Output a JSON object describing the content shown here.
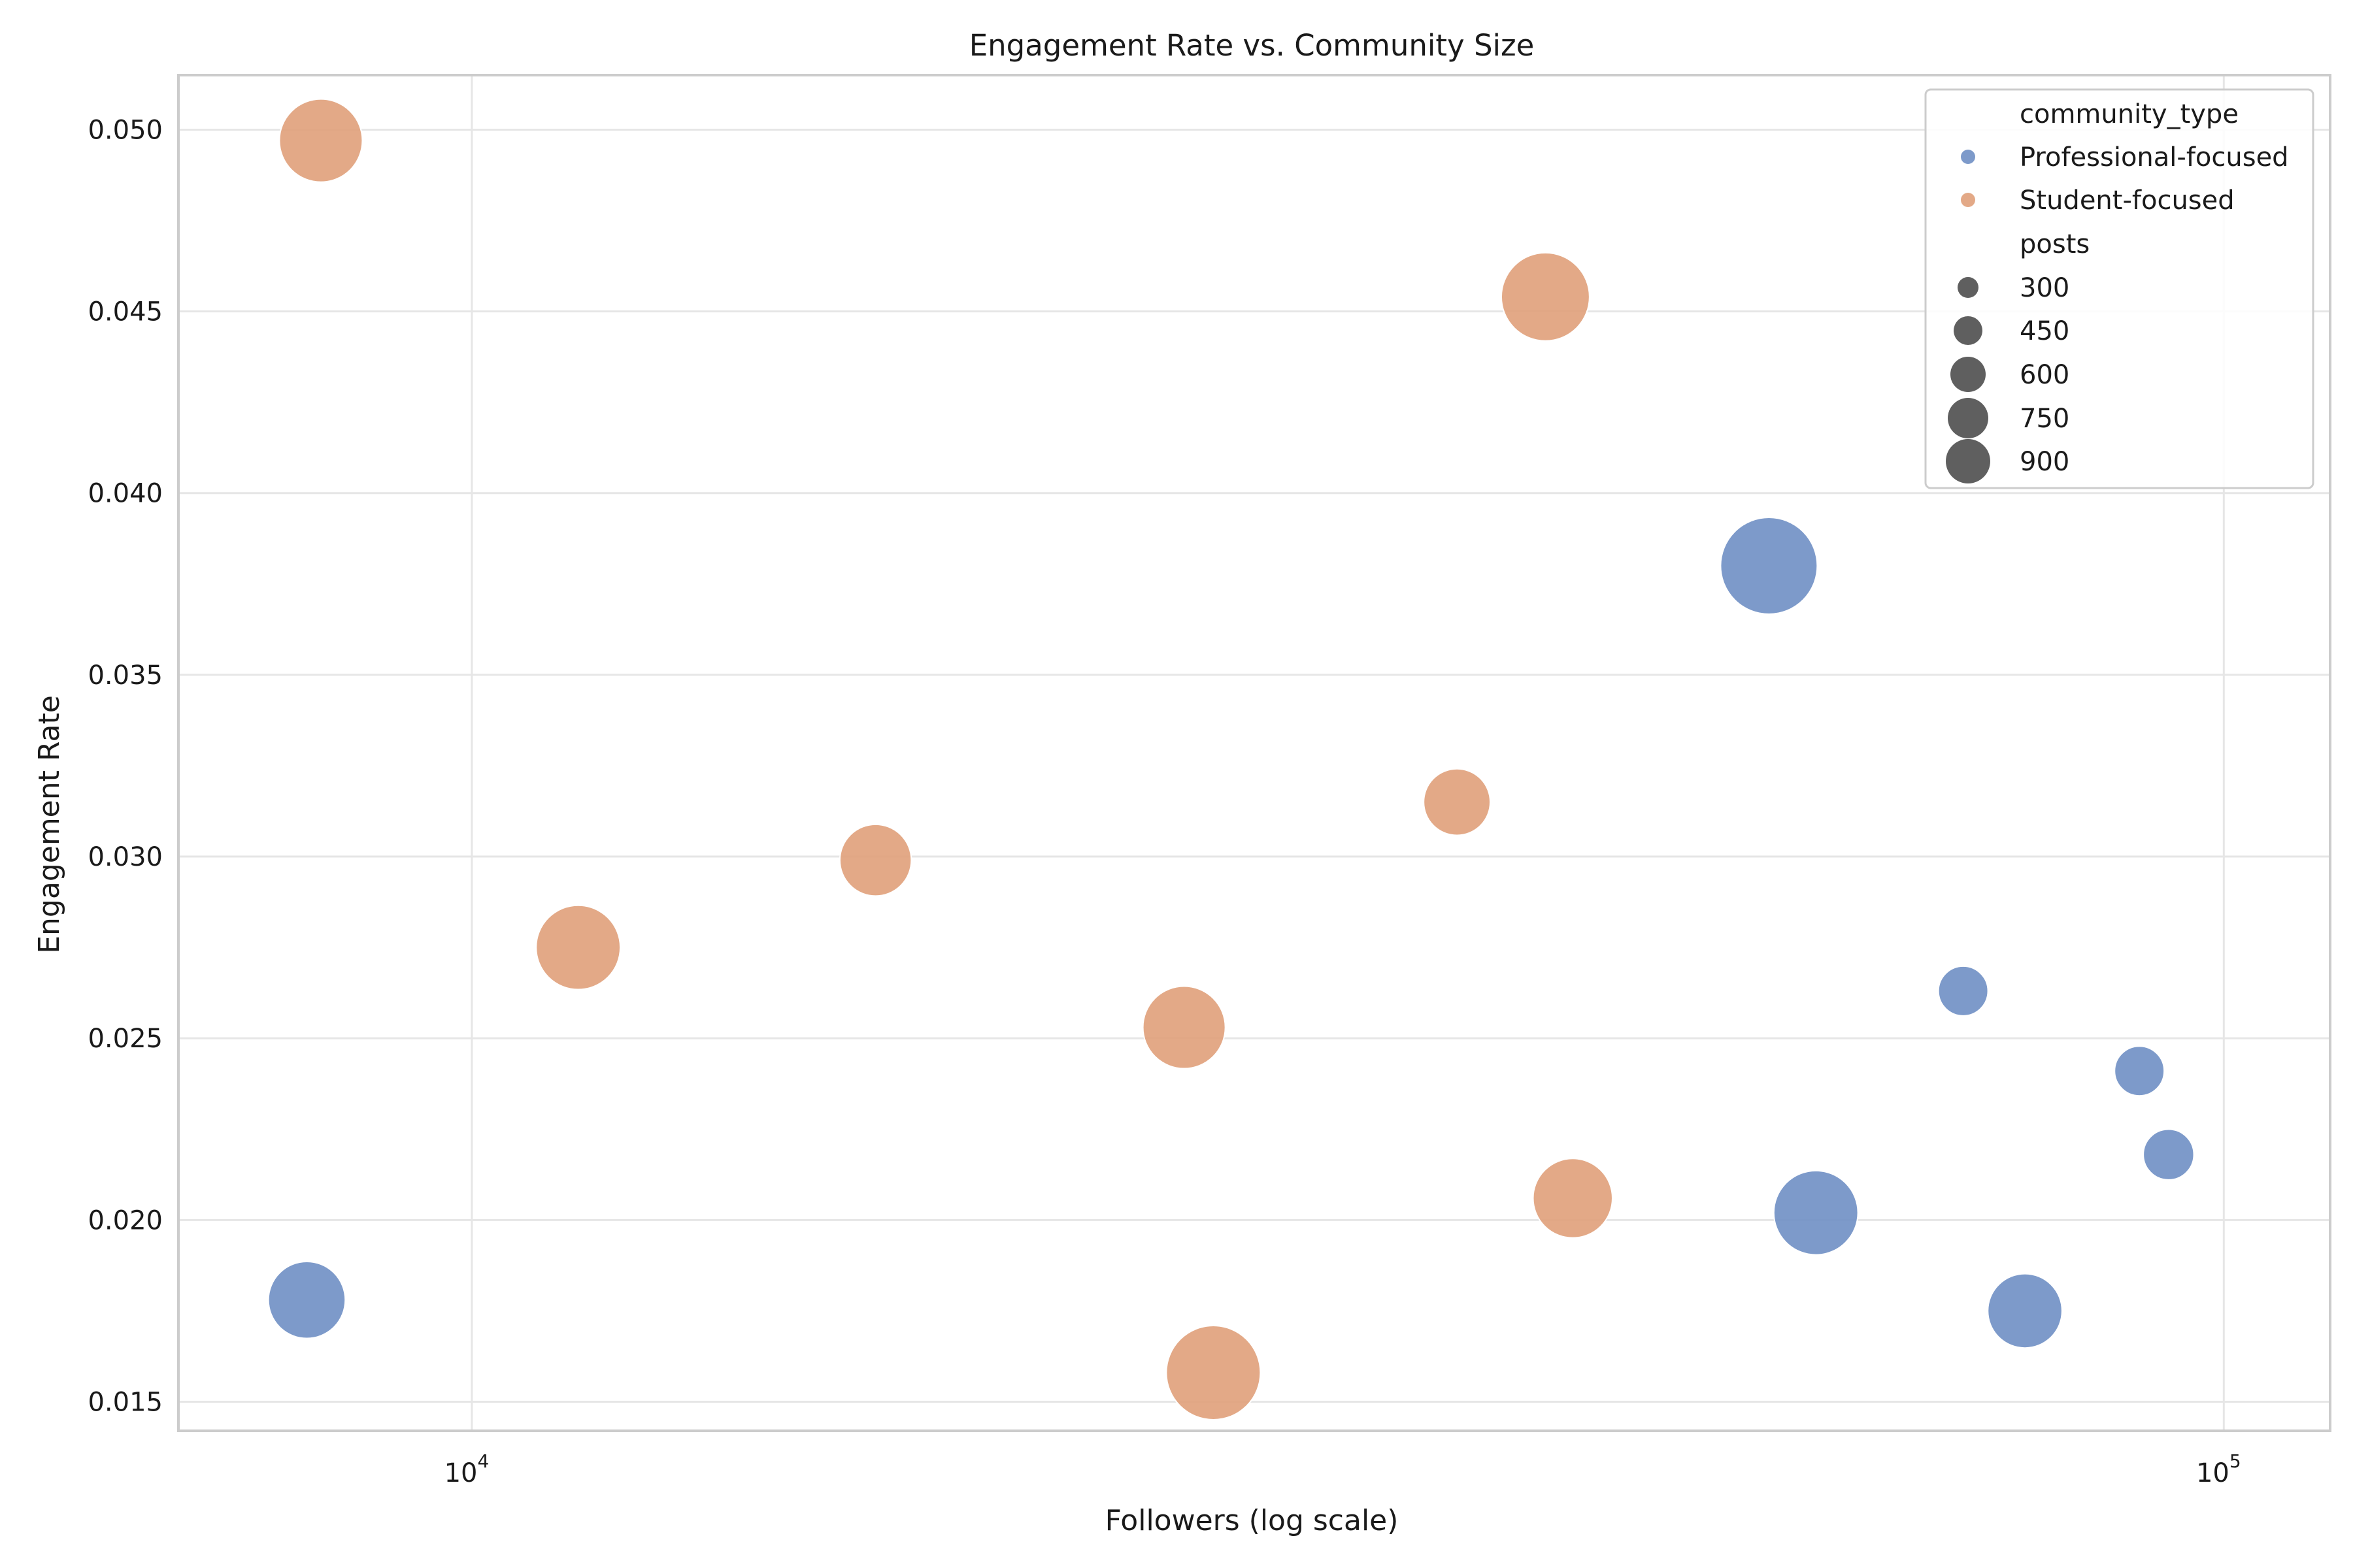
{
  "chart_data": {
    "type": "scatter",
    "title": "Engagement Rate vs. Community Size",
    "xlabel": "Followers (log scale)",
    "ylabel": "Engagement Rate",
    "xscale": "log",
    "xlim": [
      6800,
      115000
    ],
    "ylim": [
      0.0142,
      0.0515
    ],
    "grid": true,
    "x_ticks": [
      {
        "value": 10000,
        "base": "10",
        "exp": "4"
      },
      {
        "value": 100000,
        "base": "10",
        "exp": "5"
      }
    ],
    "y_ticks": [
      {
        "value": 0.015,
        "label": "0.015"
      },
      {
        "value": 0.02,
        "label": "0.020"
      },
      {
        "value": 0.025,
        "label": "0.025"
      },
      {
        "value": 0.03,
        "label": "0.030"
      },
      {
        "value": 0.035,
        "label": "0.035"
      },
      {
        "value": 0.04,
        "label": "0.040"
      },
      {
        "value": 0.045,
        "label": "0.045"
      },
      {
        "value": 0.05,
        "label": "0.050"
      }
    ],
    "legend": {
      "location": "top-right",
      "hue_title": "community_type",
      "size_title": "posts",
      "size_entries": [
        300,
        450,
        600,
        750,
        900
      ]
    },
    "series": [
      {
        "name": "Professional-focused",
        "color": "#6f8fc4",
        "points": [
          {
            "x": 8050,
            "y": 0.0178,
            "posts": 600
          },
          {
            "x": 55000,
            "y": 0.038,
            "posts": 950
          },
          {
            "x": 58500,
            "y": 0.0202,
            "posts": 720
          },
          {
            "x": 71000,
            "y": 0.0263,
            "posts": 250
          },
          {
            "x": 77000,
            "y": 0.0175,
            "posts": 560
          },
          {
            "x": 89500,
            "y": 0.0241,
            "posts": 250
          },
          {
            "x": 93000,
            "y": 0.0218,
            "posts": 260
          }
        ]
      },
      {
        "name": "Student-focused",
        "color": "#e0a07a",
        "points": [
          {
            "x": 8200,
            "y": 0.0497,
            "posts": 700
          },
          {
            "x": 11500,
            "y": 0.0275,
            "posts": 720
          },
          {
            "x": 17000,
            "y": 0.0299,
            "posts": 520
          },
          {
            "x": 25500,
            "y": 0.0253,
            "posts": 690
          },
          {
            "x": 26500,
            "y": 0.0158,
            "posts": 900
          },
          {
            "x": 36500,
            "y": 0.0315,
            "posts": 450
          },
          {
            "x": 41000,
            "y": 0.0454,
            "posts": 790
          },
          {
            "x": 42500,
            "y": 0.0206,
            "posts": 640
          }
        ]
      }
    ]
  }
}
